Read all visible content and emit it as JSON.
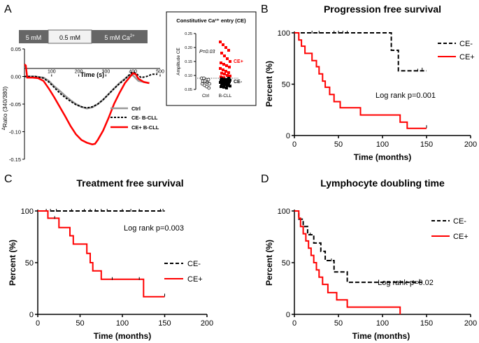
{
  "chart_data": [
    {
      "panel": "A",
      "type": "line",
      "protocol_bar": [
        "5 mM",
        "0.5 mM",
        "5 mM Ca"
      ],
      "protocol_superscript": "2+",
      "xlabel": "Time (s)",
      "ylabel_delta": "Δ",
      "ylabel": "Ratio (340/380)",
      "xlim": [
        0,
        500
      ],
      "ylim": [
        -0.15,
        0.05
      ],
      "xticks": [
        "100",
        "200",
        "300",
        "400",
        "500"
      ],
      "yticks": [
        "0.05",
        "0.00",
        "-0.05",
        "-0.10",
        "-0.15"
      ],
      "series": [
        {
          "name": "Ctrl",
          "color": "#999999",
          "style": "solid",
          "x": [
            0,
            40,
            70,
            90,
            110,
            130,
            150,
            170,
            190,
            210,
            230,
            250,
            270,
            290,
            310,
            330,
            350,
            370,
            380,
            390,
            400,
            410,
            420,
            440,
            460
          ],
          "y": [
            0,
            0,
            -0.002,
            -0.008,
            -0.018,
            -0.026,
            -0.035,
            -0.043,
            -0.05,
            -0.055,
            -0.058,
            -0.056,
            -0.05,
            -0.042,
            -0.032,
            -0.022,
            -0.012,
            -0.004,
            0,
            0.003,
            0.002,
            -0.003,
            -0.008,
            -0.01,
            -0.012
          ]
        },
        {
          "name": "CE- B-CLL",
          "color": "#000000",
          "style": "dashed",
          "x": [
            0,
            40,
            70,
            90,
            110,
            130,
            150,
            170,
            190,
            210,
            230,
            250,
            270,
            290,
            310,
            330,
            350,
            370,
            390,
            400,
            410,
            430,
            450,
            470,
            490
          ],
          "y": [
            0,
            0,
            -0.003,
            -0.01,
            -0.02,
            -0.03,
            -0.038,
            -0.045,
            -0.051,
            -0.055,
            -0.057,
            -0.055,
            -0.05,
            -0.042,
            -0.032,
            -0.022,
            -0.013,
            -0.005,
            0.005,
            0.008,
            0.006,
            -0.002,
            0,
            0.004,
            0.004
          ]
        },
        {
          "name": "CE+ B-CLL",
          "color": "#ff0000",
          "style": "solid",
          "x": [
            0,
            5,
            10,
            30,
            50,
            70,
            90,
            110,
            130,
            150,
            170,
            190,
            210,
            230,
            250,
            260,
            270,
            290,
            310,
            330,
            350,
            370,
            390,
            400,
            410,
            420,
            440,
            460
          ],
          "y": [
            0.022,
            0.02,
            -0.002,
            -0.002,
            -0.003,
            -0.008,
            -0.022,
            -0.038,
            -0.055,
            -0.072,
            -0.09,
            -0.105,
            -0.115,
            -0.12,
            -0.123,
            -0.122,
            -0.115,
            -0.098,
            -0.075,
            -0.05,
            -0.03,
            -0.012,
            0,
            0.006,
            0.004,
            -0.004,
            -0.01,
            -0.012
          ]
        }
      ]
    },
    {
      "panel": "A inset",
      "type": "scatter",
      "title": "Constitutive Ca²⁺ entry (CE)",
      "ylabel": "Amplitude CE",
      "categories": [
        "Ctrl",
        "B-CLL"
      ],
      "ylim": [
        0.05,
        0.25
      ],
      "yticks": [
        "0.25",
        "0.20",
        "0.15",
        "0.10",
        "0.05"
      ],
      "threshold": 0.09,
      "annotations": [
        "P=0.03",
        "CE+",
        "CE-"
      ],
      "ctrl_values": [
        0.09,
        0.09,
        0.085,
        0.085,
        0.08,
        0.08,
        0.075,
        0.07,
        0.07,
        0.065,
        0.06,
        0.055
      ],
      "cll_ce_plus": [
        0.22,
        0.21,
        0.2,
        0.19,
        0.18,
        0.17,
        0.16,
        0.15,
        0.145,
        0.14,
        0.135,
        0.13,
        0.125,
        0.12,
        0.115,
        0.11,
        0.108,
        0.105,
        0.1,
        0.098,
        0.095,
        0.092
      ],
      "cll_ce_minus": [
        0.09,
        0.088,
        0.086,
        0.085,
        0.083,
        0.082,
        0.08,
        0.078,
        0.077,
        0.075,
        0.073,
        0.072,
        0.07,
        0.068,
        0.066,
        0.064,
        0.062,
        0.06,
        0.058,
        0.055
      ]
    },
    {
      "panel": "B",
      "type": "line",
      "title": "Progression free survival",
      "xlabel": "Time (months)",
      "ylabel": "Percent (%)",
      "xlim": [
        0,
        200
      ],
      "ylim": [
        0,
        100
      ],
      "xticks": [
        "0",
        "50",
        "100",
        "150",
        "200"
      ],
      "yticks": [
        "0",
        "50",
        "100"
      ],
      "annotation": "Log rank p=0.001",
      "series": [
        {
          "name": "CE-",
          "color": "#000000",
          "style": "dashed",
          "steps": [
            [
              0,
              100
            ],
            [
              110,
              100
            ],
            [
              110,
              83
            ],
            [
              118,
              83
            ],
            [
              118,
              63
            ],
            [
              150,
              63
            ]
          ],
          "censors": [
            [
              20,
              100
            ],
            [
              28,
              100
            ],
            [
              45,
              100
            ],
            [
              50,
              100
            ],
            [
              55,
              100
            ],
            [
              60,
              100
            ],
            [
              140,
              63
            ],
            [
              145,
              64
            ]
          ]
        },
        {
          "name": "CE+",
          "color": "#ff0000",
          "style": "solid",
          "steps": [
            [
              0,
              100
            ],
            [
              5,
              100
            ],
            [
              5,
              93
            ],
            [
              8,
              93
            ],
            [
              8,
              87
            ],
            [
              12,
              87
            ],
            [
              12,
              80
            ],
            [
              20,
              80
            ],
            [
              20,
              73
            ],
            [
              25,
              73
            ],
            [
              25,
              67
            ],
            [
              28,
              67
            ],
            [
              28,
              60
            ],
            [
              32,
              60
            ],
            [
              32,
              53
            ],
            [
              35,
              53
            ],
            [
              35,
              47
            ],
            [
              40,
              47
            ],
            [
              40,
              40
            ],
            [
              45,
              40
            ],
            [
              45,
              33
            ],
            [
              52,
              33
            ],
            [
              52,
              27
            ],
            [
              75,
              27
            ],
            [
              75,
              20
            ],
            [
              120,
              20
            ],
            [
              120,
              13
            ],
            [
              128,
              13
            ],
            [
              128,
              7
            ],
            [
              150,
              7
            ]
          ],
          "censors": [
            [
              150,
              8
            ]
          ]
        }
      ]
    },
    {
      "panel": "C",
      "type": "line",
      "title": "Treatment free survival",
      "xlabel": "Time (months)",
      "ylabel": "Percent (%)",
      "xlim": [
        0,
        200
      ],
      "ylim": [
        0,
        100
      ],
      "xticks": [
        "0",
        "50",
        "100",
        "150",
        "200"
      ],
      "yticks": [
        "0",
        "50",
        "100"
      ],
      "annotation": "Log rank p=0.003",
      "series": [
        {
          "name": "CE-",
          "color": "#000000",
          "style": "dashed",
          "steps": [
            [
              0,
              100
            ],
            [
              150,
              100
            ]
          ],
          "censors": [
            [
              10,
              100
            ],
            [
              15,
              100
            ],
            [
              22,
              100
            ],
            [
              40,
              100
            ],
            [
              55,
              100
            ],
            [
              62,
              100
            ],
            [
              68,
              100
            ],
            [
              75,
              100
            ],
            [
              82,
              100
            ],
            [
              100,
              100
            ],
            [
              110,
              100
            ],
            [
              120,
              100
            ],
            [
              145,
              100
            ],
            [
              148,
              100
            ]
          ]
        },
        {
          "name": "CE+",
          "color": "#ff0000",
          "style": "solid",
          "steps": [
            [
              0,
              100
            ],
            [
              12,
              100
            ],
            [
              12,
              93
            ],
            [
              25,
              93
            ],
            [
              25,
              84
            ],
            [
              38,
              84
            ],
            [
              38,
              76
            ],
            [
              42,
              76
            ],
            [
              42,
              68
            ],
            [
              58,
              68
            ],
            [
              58,
              59
            ],
            [
              62,
              59
            ],
            [
              62,
              50
            ],
            [
              65,
              50
            ],
            [
              65,
              42
            ],
            [
              75,
              42
            ],
            [
              75,
              34
            ],
            [
              125,
              34
            ],
            [
              125,
              17
            ],
            [
              150,
              17
            ]
          ],
          "censors": [
            [
              20,
              93
            ],
            [
              88,
              34
            ],
            [
              120,
              34
            ],
            [
              150,
              18
            ]
          ]
        }
      ]
    },
    {
      "panel": "D",
      "type": "line",
      "title": "Lymphocyte doubling time",
      "xlabel": "Time (months)",
      "ylabel": "Percent (%)",
      "xlim": [
        0,
        200
      ],
      "ylim": [
        0,
        100
      ],
      "xticks": [
        "0",
        "50",
        "100",
        "150",
        "200"
      ],
      "yticks": [
        "0",
        "50",
        "100"
      ],
      "annotation": "Log rank p=0.02",
      "series": [
        {
          "name": "CE-",
          "color": "#000000",
          "style": "dashed",
          "steps": [
            [
              0,
              100
            ],
            [
              5,
              100
            ],
            [
              5,
              92
            ],
            [
              10,
              92
            ],
            [
              10,
              85
            ],
            [
              15,
              85
            ],
            [
              15,
              77
            ],
            [
              22,
              77
            ],
            [
              22,
              69
            ],
            [
              30,
              69
            ],
            [
              30,
              61
            ],
            [
              35,
              61
            ],
            [
              35,
              52
            ],
            [
              45,
              52
            ],
            [
              45,
              41
            ],
            [
              60,
              41
            ],
            [
              60,
              31
            ],
            [
              145,
              31
            ]
          ],
          "censors": [
            [
              18,
              77
            ],
            [
              42,
              52
            ],
            [
              120,
              31
            ],
            [
              135,
              31
            ],
            [
              142,
              32
            ]
          ]
        },
        {
          "name": "CE+",
          "color": "#ff0000",
          "style": "solid",
          "steps": [
            [
              0,
              100
            ],
            [
              5,
              100
            ],
            [
              5,
              93
            ],
            [
              7,
              93
            ],
            [
              7,
              85
            ],
            [
              10,
              85
            ],
            [
              10,
              78
            ],
            [
              13,
              78
            ],
            [
              13,
              71
            ],
            [
              16,
              71
            ],
            [
              16,
              64
            ],
            [
              19,
              64
            ],
            [
              19,
              57
            ],
            [
              22,
              57
            ],
            [
              22,
              50
            ],
            [
              25,
              50
            ],
            [
              25,
              43
            ],
            [
              28,
              43
            ],
            [
              28,
              36
            ],
            [
              32,
              36
            ],
            [
              32,
              29
            ],
            [
              38,
              29
            ],
            [
              38,
              21
            ],
            [
              48,
              21
            ],
            [
              48,
              14
            ],
            [
              60,
              14
            ],
            [
              60,
              7
            ],
            [
              120,
              7
            ],
            [
              120,
              0
            ]
          ],
          "censors": []
        }
      ]
    }
  ],
  "panel_letters": [
    "A",
    "B",
    "C",
    "D"
  ]
}
